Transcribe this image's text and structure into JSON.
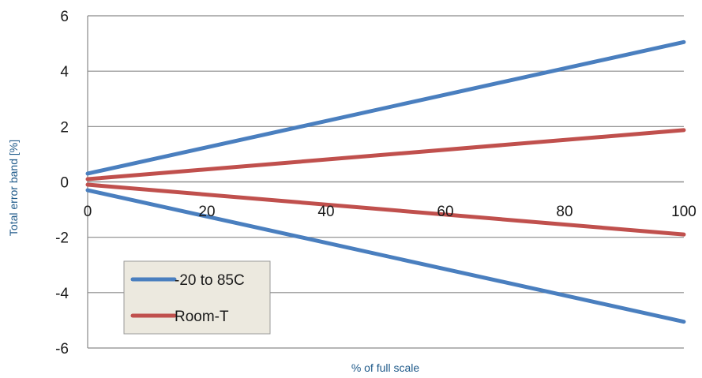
{
  "chart_data": {
    "type": "line",
    "xlabel": "% of full scale",
    "ylabel": "Total error band [%]",
    "xlim": [
      0,
      100
    ],
    "ylim": [
      -6,
      6
    ],
    "xticks": [
      "0",
      "20",
      "40",
      "60",
      "80",
      "100"
    ],
    "yticks": [
      "6",
      "4",
      "2",
      "0",
      "-2",
      "-4",
      "-6"
    ],
    "grid": "horizontal",
    "legend_position": "bottom-left",
    "legend": [
      "-20 to 85C",
      "Room-T"
    ],
    "series": [
      {
        "name": "-20 to 85C",
        "color": "#4a7fbf",
        "lines": [
          {
            "x": [
              0,
              100
            ],
            "y": [
              0.3,
              5.05
            ]
          },
          {
            "x": [
              0,
              100
            ],
            "y": [
              -0.3,
              -5.05
            ]
          }
        ]
      },
      {
        "name": "Room-T",
        "color": "#c0504d",
        "lines": [
          {
            "x": [
              0,
              100
            ],
            "y": [
              0.1,
              1.87
            ]
          },
          {
            "x": [
              0,
              100
            ],
            "y": [
              -0.1,
              -1.9
            ]
          }
        ]
      }
    ]
  }
}
